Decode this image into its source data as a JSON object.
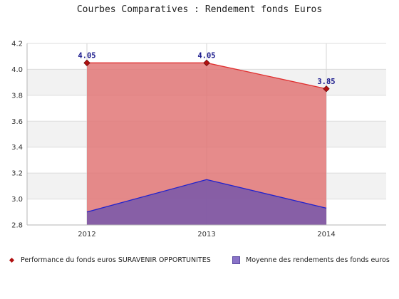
{
  "chart_data": {
    "type": "area",
    "title": "Courbes Comparatives : Rendement fonds Euros",
    "categories": [
      "2012",
      "2013",
      "2014"
    ],
    "ylim": [
      2.8,
      4.2
    ],
    "yticks": [
      "2.8",
      "3.0",
      "3.2",
      "3.4",
      "3.6",
      "3.8",
      "4.0",
      "4.2"
    ],
    "grid": true,
    "legend_position": "bottom",
    "series": [
      {
        "name": "Performance du fonds euros SURAVENIR OPPORTUNITES",
        "values": [
          4.05,
          4.05,
          3.85
        ],
        "labels": [
          "4.05",
          "4.05",
          "3.85"
        ],
        "line_color": "#e03030",
        "fill_color": "#e07272",
        "marker_color": "#b01010"
      },
      {
        "name": "Moyenne des rendements des fonds euros",
        "values": [
          2.9,
          3.15,
          2.93
        ],
        "line_color": "#2222cc",
        "fill_color": "#7c5aa8"
      }
    ]
  }
}
